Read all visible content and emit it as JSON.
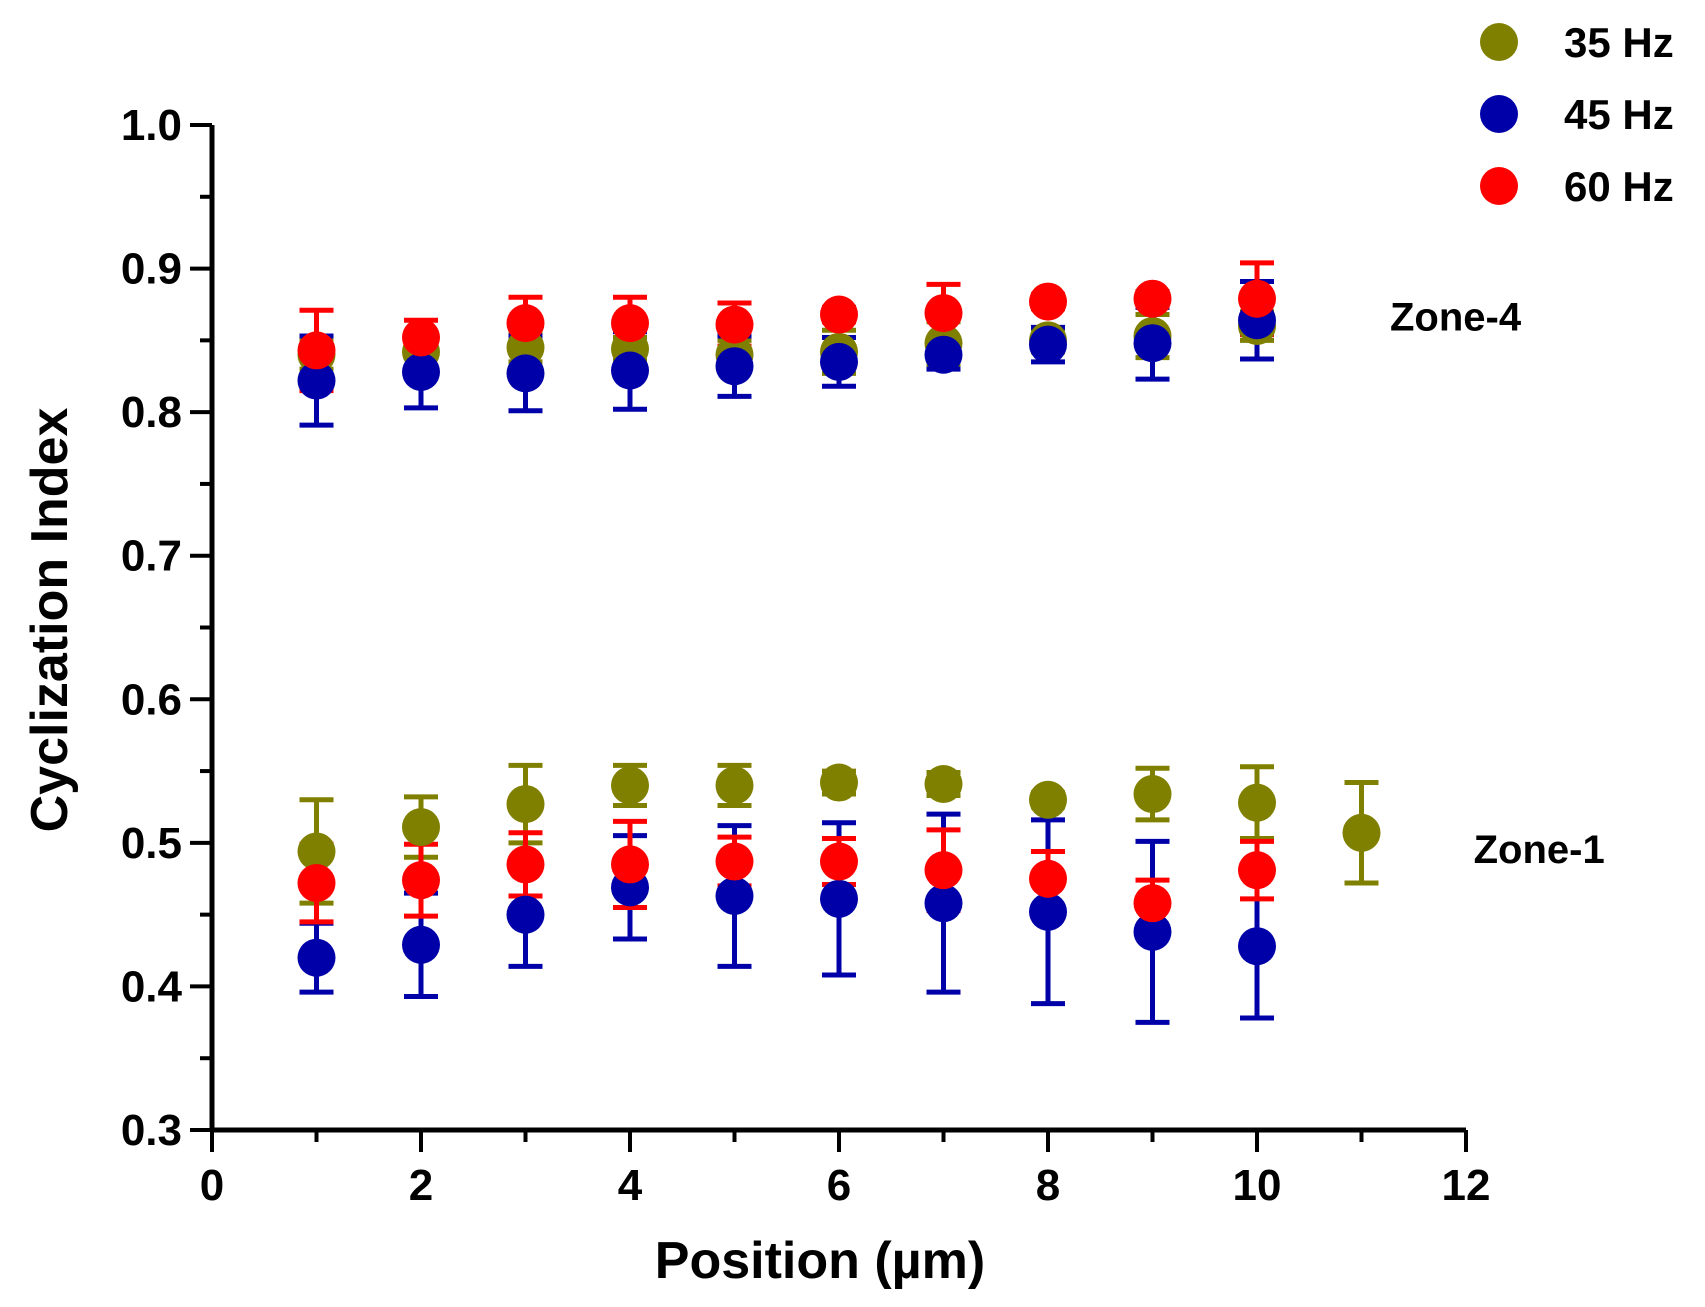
{
  "chart_data": {
    "type": "scatter",
    "title": "",
    "xlabel": "Position (µm)",
    "ylabel": "Cyclization Index",
    "xlim": [
      0,
      12
    ],
    "ylim": [
      0.3,
      1.0
    ],
    "xticks": [
      0,
      2,
      4,
      6,
      8,
      10,
      12
    ],
    "xtick_labels": [
      "0",
      "2",
      "4",
      "6",
      "8",
      "10",
      "12"
    ],
    "yticks": [
      0.3,
      0.4,
      0.5,
      0.6,
      0.7,
      0.8,
      0.9,
      1.0
    ],
    "ytick_labels": [
      "0.3",
      "0.4",
      "0.5",
      "0.6",
      "0.7",
      "0.8",
      "0.9",
      "1.0"
    ],
    "grid": false,
    "legend_position": "top-right",
    "annotations": [
      {
        "text": "Zone-4",
        "x": 11.9,
        "y": 0.857
      },
      {
        "text": "Zone-1",
        "x": 12.7,
        "y": 0.486
      }
    ],
    "series": [
      {
        "name": "35 Hz",
        "color": "#808000",
        "group": "Zone-4",
        "x": [
          1,
          2,
          3,
          4,
          5,
          6,
          7,
          8,
          9,
          10
        ],
        "y": [
          0.84,
          0.842,
          0.845,
          0.844,
          0.84,
          0.842,
          0.848,
          0.85,
          0.853,
          0.86
        ],
        "err": [
          0.01,
          0.01,
          0.01,
          0.008,
          0.01,
          0.015,
          0.015,
          0.008,
          0.015,
          0.01
        ]
      },
      {
        "name": "35 Hz",
        "color": "#808000",
        "group": "Zone-1",
        "x": [
          1,
          2,
          3,
          4,
          5,
          6,
          7,
          8,
          9,
          10,
          11
        ],
        "y": [
          0.494,
          0.511,
          0.527,
          0.54,
          0.54,
          0.542,
          0.541,
          0.53,
          0.534,
          0.528,
          0.507
        ],
        "err": [
          0.036,
          0.021,
          0.027,
          0.014,
          0.014,
          0.008,
          0.008,
          0.005,
          0.018,
          0.025,
          0.035
        ]
      },
      {
        "name": "45 Hz",
        "color": "#0000a8",
        "group": "Zone-4",
        "x": [
          1,
          2,
          3,
          4,
          5,
          6,
          7,
          8,
          9,
          10
        ],
        "y": [
          0.822,
          0.828,
          0.827,
          0.829,
          0.832,
          0.835,
          0.84,
          0.847,
          0.848,
          0.864
        ],
        "err": [
          0.031,
          0.025,
          0.026,
          0.027,
          0.021,
          0.017,
          0.01,
          0.012,
          0.025,
          0.027
        ]
      },
      {
        "name": "45 Hz",
        "color": "#0000a8",
        "group": "Zone-1",
        "x": [
          1,
          2,
          3,
          4,
          5,
          6,
          7,
          8,
          9,
          10
        ],
        "y": [
          0.42,
          0.429,
          0.45,
          0.469,
          0.463,
          0.461,
          0.458,
          0.452,
          0.438,
          0.428
        ],
        "err": [
          0.024,
          0.036,
          0.036,
          0.036,
          0.049,
          0.053,
          0.062,
          0.064,
          0.063,
          0.05
        ]
      },
      {
        "name": "60 Hz",
        "color": "#ff0000",
        "group": "Zone-4",
        "x": [
          1,
          2,
          3,
          4,
          5,
          6,
          7,
          8,
          9,
          10
        ],
        "y": [
          0.843,
          0.852,
          0.862,
          0.862,
          0.861,
          0.868,
          0.869,
          0.877,
          0.879,
          0.879
        ],
        "err": [
          0.028,
          0.012,
          0.018,
          0.018,
          0.015,
          0.005,
          0.02,
          0.005,
          0.005,
          0.025
        ]
      },
      {
        "name": "60 Hz",
        "color": "#ff0000",
        "group": "Zone-1",
        "x": [
          1,
          2,
          3,
          4,
          5,
          6,
          7,
          8,
          9,
          10
        ],
        "y": [
          0.472,
          0.474,
          0.485,
          0.485,
          0.487,
          0.487,
          0.481,
          0.475,
          0.458,
          0.481
        ],
        "err": [
          0.027,
          0.025,
          0.022,
          0.03,
          0.017,
          0.016,
          0.028,
          0.019,
          0.016,
          0.02
        ]
      }
    ],
    "legend": [
      {
        "label": "35 Hz",
        "color": "#808000"
      },
      {
        "label": "45 Hz",
        "color": "#0000a8"
      },
      {
        "label": "60 Hz",
        "color": "#ff0000"
      }
    ]
  }
}
